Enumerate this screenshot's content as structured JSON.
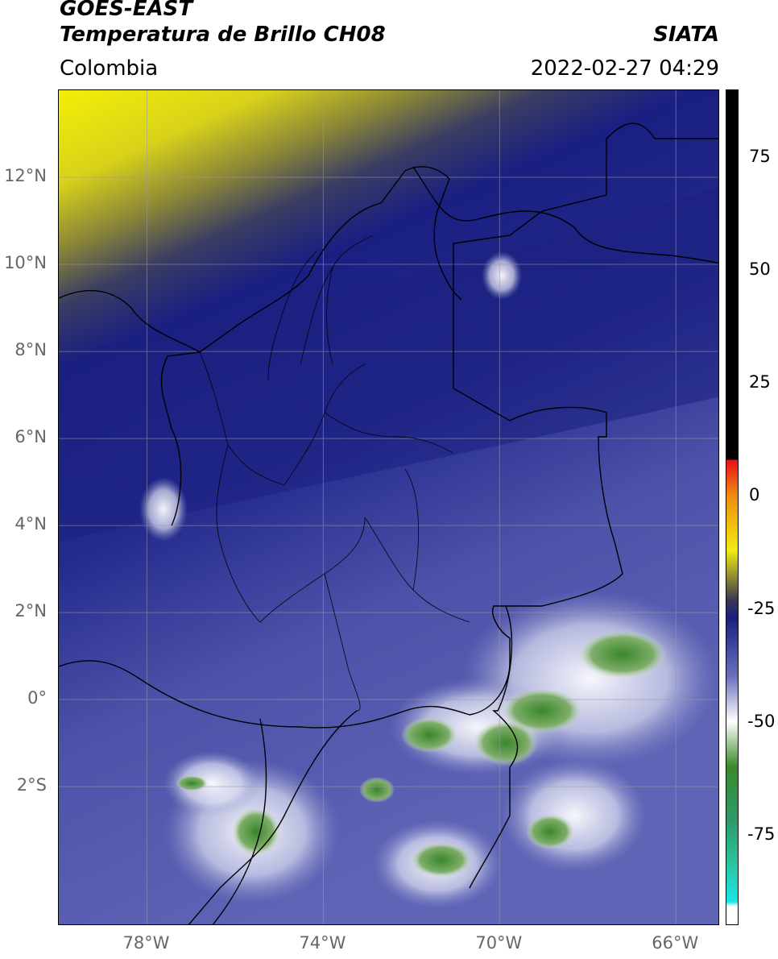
{
  "header": {
    "satellite": "GOES-EAST",
    "product": "Temperatura de Brillo CH08",
    "region": "Colombia",
    "agency": "SIATA",
    "datetime": "2022-02-27 04:29"
  },
  "map": {
    "lat_range": [
      -5.2,
      14.0
    ],
    "lon_range": [
      -80.0,
      -65.0
    ],
    "lat_ticks": [
      {
        "value": 12,
        "label": "12°N"
      },
      {
        "value": 10,
        "label": "10°N"
      },
      {
        "value": 8,
        "label": "8°N"
      },
      {
        "value": 6,
        "label": "6°N"
      },
      {
        "value": 4,
        "label": "4°N"
      },
      {
        "value": 2,
        "label": "2°N"
      },
      {
        "value": 0,
        "label": "0°"
      },
      {
        "value": -2,
        "label": "2°S"
      }
    ],
    "lon_ticks": [
      {
        "value": -78,
        "label": "78°W"
      },
      {
        "value": -74,
        "label": "74°W"
      },
      {
        "value": -70,
        "label": "70°W"
      },
      {
        "value": -66,
        "label": "66°W"
      }
    ],
    "gridlines": true
  },
  "colorbar": {
    "range": [
      -95,
      90
    ],
    "ticks": [
      {
        "value": 75,
        "label": "75"
      },
      {
        "value": 50,
        "label": "50"
      },
      {
        "value": 25,
        "label": "25"
      },
      {
        "value": 0,
        "label": "0"
      },
      {
        "value": -25,
        "label": "-25"
      },
      {
        "value": -50,
        "label": "-50"
      },
      {
        "value": -75,
        "label": "-75"
      }
    ],
    "colors": {
      "top": "#000000",
      "red": "#e8101a",
      "orange": "#f08c10",
      "yellow": "#f2ec10",
      "olive": "#8f8a32",
      "navy": "#1a1f7e",
      "periwinkle": "#6a70bd",
      "white": "#ffffff",
      "green": "#3b8a2a",
      "teal": "#2cc6a3",
      "cyan": "#18e6e8"
    }
  }
}
